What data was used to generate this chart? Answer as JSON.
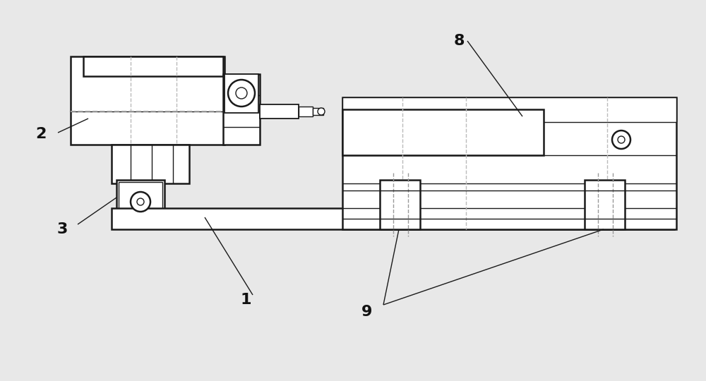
{
  "background": "#e8e8e8",
  "line_color": "#1a1a1a",
  "dashed_color": "#999999",
  "label_color": "#111111",
  "label_fontsize": 16,
  "lw_main": 1.8,
  "lw_thin": 1.0,
  "lw_med": 1.3
}
